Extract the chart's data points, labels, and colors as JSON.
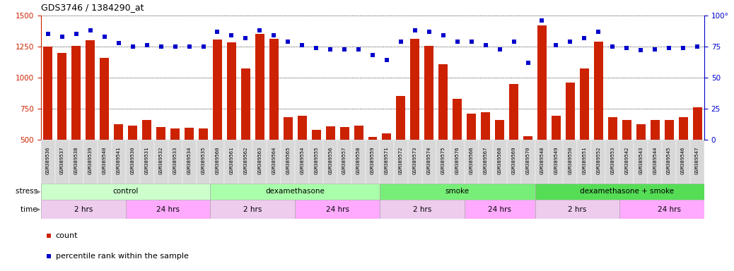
{
  "title": "GDS3746 / 1384290_at",
  "samples": [
    "GSM389536",
    "GSM389537",
    "GSM389538",
    "GSM389539",
    "GSM389540",
    "GSM389541",
    "GSM389530",
    "GSM389531",
    "GSM389532",
    "GSM389533",
    "GSM389534",
    "GSM389535",
    "GSM389560",
    "GSM389561",
    "GSM389562",
    "GSM389563",
    "GSM389564",
    "GSM389565",
    "GSM389554",
    "GSM389555",
    "GSM389556",
    "GSM389557",
    "GSM389558",
    "GSM389559",
    "GSM389571",
    "GSM389572",
    "GSM389573",
    "GSM389574",
    "GSM389575",
    "GSM389576",
    "GSM389566",
    "GSM389567",
    "GSM389568",
    "GSM389569",
    "GSM389570",
    "GSM389548",
    "GSM389549",
    "GSM389550",
    "GSM389551",
    "GSM389552",
    "GSM389553",
    "GSM389542",
    "GSM389543",
    "GSM389544",
    "GSM389545",
    "GSM389546",
    "GSM389547"
  ],
  "counts": [
    1248,
    1200,
    1255,
    1300,
    1160,
    625,
    615,
    660,
    600,
    590,
    595,
    590,
    1305,
    1285,
    1075,
    1350,
    1310,
    680,
    695,
    580,
    610,
    600,
    615,
    525,
    550,
    855,
    1310,
    1255,
    1110,
    830,
    710,
    720,
    660,
    950,
    530,
    1420,
    695,
    960,
    1075,
    1290,
    680,
    660,
    625,
    660,
    660,
    680,
    760
  ],
  "percentiles": [
    85,
    83,
    85,
    88,
    83,
    78,
    75,
    76,
    75,
    75,
    75,
    75,
    87,
    84,
    82,
    88,
    84,
    79,
    76,
    74,
    73,
    73,
    73,
    68,
    64,
    79,
    88,
    87,
    84,
    79,
    79,
    76,
    73,
    79,
    62,
    96,
    76,
    79,
    82,
    87,
    75,
    74,
    72,
    73,
    74,
    74,
    75
  ],
  "ylim_left": [
    500,
    1500
  ],
  "ylim_right": [
    0,
    100
  ],
  "yticks_left": [
    500,
    750,
    1000,
    1250,
    1500
  ],
  "yticks_right": [
    0,
    25,
    50,
    75,
    100
  ],
  "bar_color": "#cc2200",
  "dot_color": "#0000cc",
  "xtick_bg": "#dddddd",
  "stress_groups": [
    {
      "label": "control",
      "start": 0,
      "end": 12,
      "color": "#ccffcc"
    },
    {
      "label": "dexamethasone",
      "start": 12,
      "end": 24,
      "color": "#aaffaa"
    },
    {
      "label": "smoke",
      "start": 24,
      "end": 35,
      "color": "#77ee77"
    },
    {
      "label": "dexamethasone + smoke",
      "start": 35,
      "end": 48,
      "color": "#55dd55"
    }
  ],
  "time_groups": [
    {
      "label": "2 hrs",
      "start": 0,
      "end": 6,
      "color": "#eeccee"
    },
    {
      "label": "24 hrs",
      "start": 6,
      "end": 12,
      "color": "#ffaaff"
    },
    {
      "label": "2 hrs",
      "start": 12,
      "end": 18,
      "color": "#eeccee"
    },
    {
      "label": "24 hrs",
      "start": 18,
      "end": 24,
      "color": "#ffaaff"
    },
    {
      "label": "2 hrs",
      "start": 24,
      "end": 30,
      "color": "#eeccee"
    },
    {
      "label": "24 hrs",
      "start": 30,
      "end": 35,
      "color": "#ffaaff"
    },
    {
      "label": "2 hrs",
      "start": 35,
      "end": 41,
      "color": "#eeccee"
    },
    {
      "label": "24 hrs",
      "start": 41,
      "end": 48,
      "color": "#ffaaff"
    }
  ]
}
